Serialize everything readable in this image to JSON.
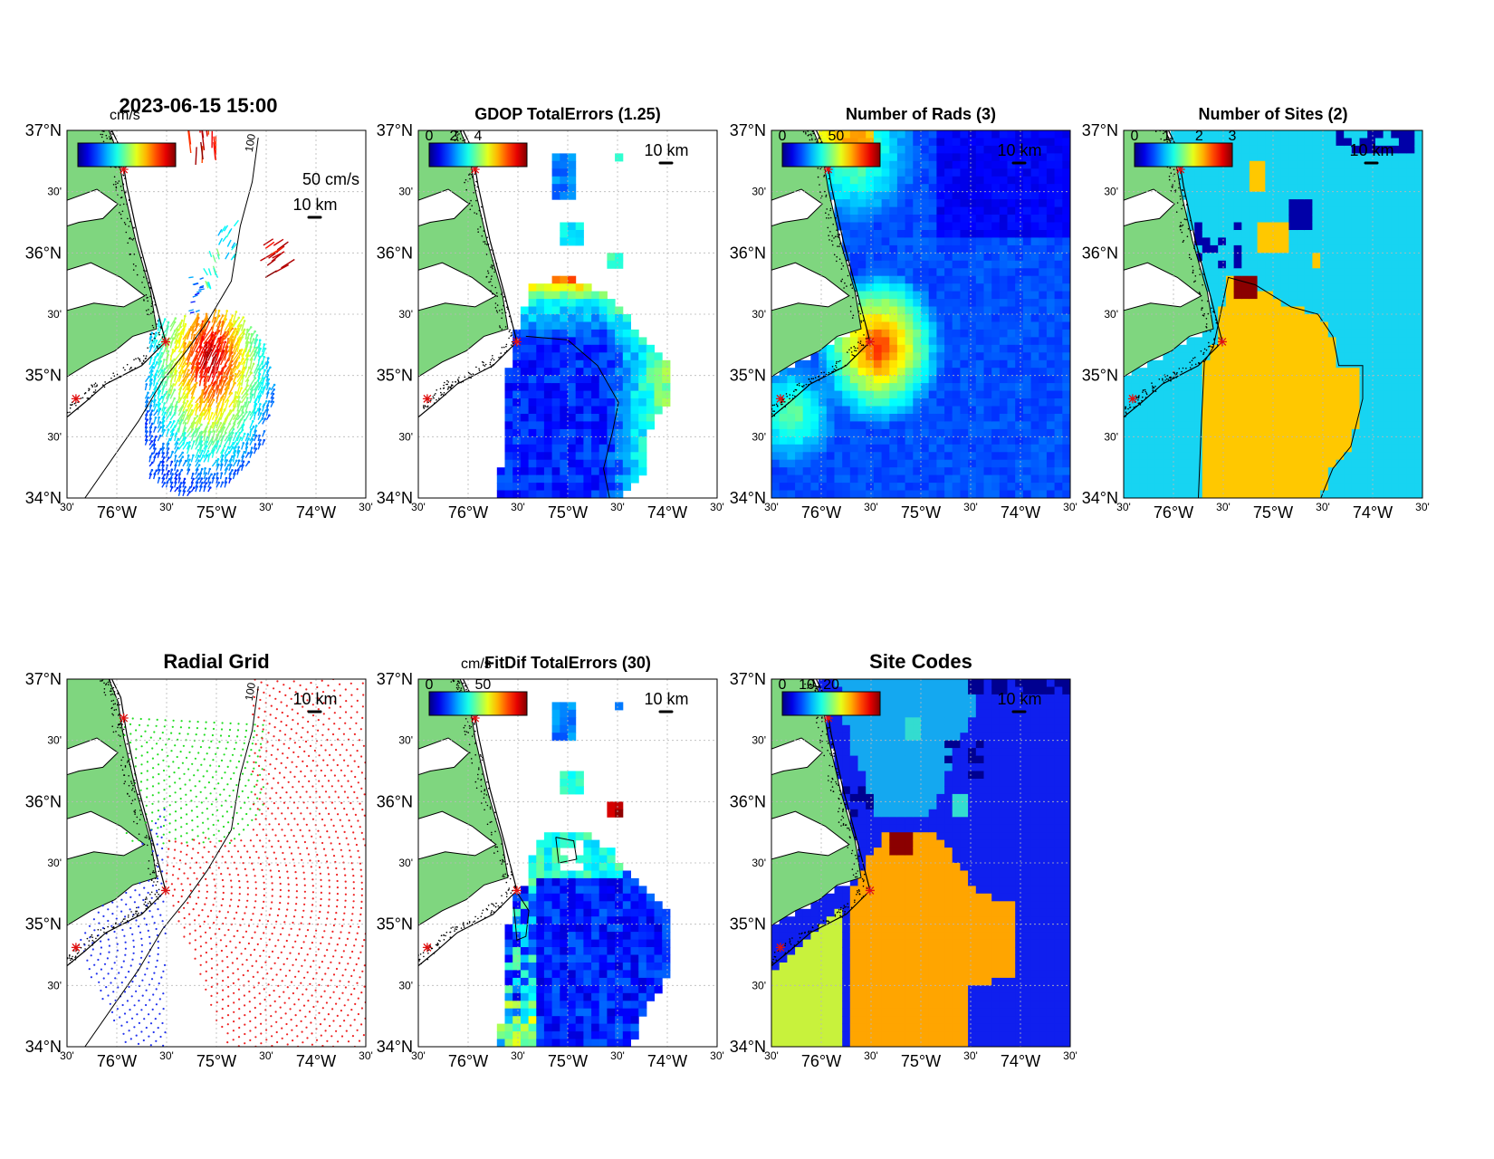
{
  "figure": {
    "timestamp": "2023-06-15 15:00",
    "overlapped_caption": "",
    "lon_ticks": [
      "30'",
      "76°W",
      "30'",
      "75°W",
      "30'",
      "74°W",
      "30'"
    ],
    "lat_ticks": [
      "37°N",
      "30'",
      "36°N",
      "30'",
      "35°N",
      "30'",
      "34°N"
    ],
    "scale_bar_label": "10 km",
    "land_color": "#7fd67f",
    "site_marker_color": "#e01010"
  },
  "panels": [
    {
      "id": "total-vectors",
      "title": "",
      "colorbar": {
        "units": "cm/s",
        "ticks": []
      },
      "vector_scale_label": "50 cm/s",
      "scale_bar": "10 km",
      "isobath_label": "100"
    },
    {
      "id": "gdop-total-errors",
      "title": "GDOP TotalErrors (1.25)",
      "colorbar": {
        "units": "",
        "ticks": [
          "0",
          "2",
          "4"
        ]
      },
      "scale_bar": "10 km",
      "contour_label": "1.25"
    },
    {
      "id": "number-of-rads",
      "title": "Number of Rads (3)",
      "colorbar": {
        "units": "",
        "ticks": [
          "0",
          "50"
        ]
      },
      "scale_bar": "10 km"
    },
    {
      "id": "number-of-sites",
      "title": "Number of Sites (2)",
      "colorbar": {
        "units": "",
        "ticks": [
          "0",
          "1",
          "2",
          "3"
        ]
      },
      "scale_bar": "10 km",
      "contour_label": "2"
    },
    {
      "id": "radial-grid",
      "title": "Radial Grid",
      "colorbar": null,
      "scale_bar": "10 km",
      "isobath_label": "100",
      "grid_colors": {
        "north": "#22dd22",
        "central": "#ee2222",
        "south": "#2233ee"
      }
    },
    {
      "id": "fitdif-total-errors",
      "title": "FitDif TotalErrors (30)",
      "colorbar": {
        "units": "cm/s",
        "ticks": [
          "0",
          "50"
        ]
      },
      "scale_bar": "10 km",
      "contour_label": "30"
    },
    {
      "id": "site-codes",
      "title": "Site Codes",
      "colorbar": {
        "units": "",
        "ticks": [
          "0",
          "10",
          "20"
        ]
      },
      "scale_bar": "10 km"
    }
  ]
}
